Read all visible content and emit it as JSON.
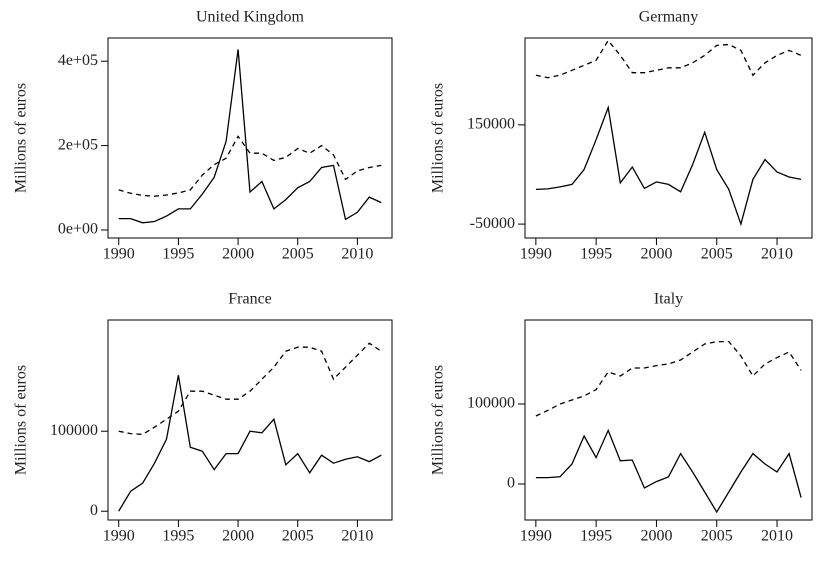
{
  "chart_data": [
    {
      "type": "line",
      "title": "United Kingdom",
      "y_label": "Millions of euros",
      "x": [
        1990,
        1991,
        1992,
        1993,
        1994,
        1995,
        1996,
        1997,
        1998,
        1999,
        2000,
        2001,
        2002,
        2003,
        2004,
        2005,
        2006,
        2007,
        2008,
        2009,
        2010,
        2011,
        2012
      ],
      "series": [
        {
          "color": "#000000",
          "dash": "solid",
          "values": [
            27000,
            27000,
            17000,
            20000,
            33000,
            50000,
            50000,
            85000,
            125000,
            210000,
            428000,
            90000,
            115000,
            50000,
            72000,
            100000,
            115000,
            148000,
            153000,
            25000,
            42000,
            78000,
            65000
          ]
        },
        {
          "color": "#000000",
          "dash": "dashed",
          "values": [
            95000,
            87000,
            82000,
            80000,
            83000,
            88000,
            95000,
            130000,
            155000,
            170000,
            222000,
            182000,
            182000,
            165000,
            172000,
            193000,
            182000,
            200000,
            178000,
            120000,
            140000,
            148000,
            153000
          ]
        }
      ],
      "xlim": [
        1989.1,
        2012.9
      ],
      "xticks": [
        1990,
        1995,
        2000,
        2005,
        2010
      ],
      "ylim": [
        -19000,
        455000
      ],
      "yticks": [
        {
          "value": 0,
          "label": "0e+00"
        },
        {
          "value": 200000,
          "label": "2e+05"
        },
        {
          "value": 400000,
          "label": "4e+05"
        }
      ]
    },
    {
      "type": "line",
      "title": "Germany",
      "y_label": "Millions of euros",
      "x": [
        1990,
        1991,
        1992,
        1993,
        1994,
        1995,
        1996,
        1997,
        1998,
        1999,
        2000,
        2001,
        2002,
        2003,
        2004,
        2005,
        2006,
        2007,
        2008,
        2009,
        2010,
        2011,
        2012
      ],
      "series": [
        {
          "color": "#000000",
          "dash": "solid",
          "values": [
            20000,
            21000,
            25000,
            30000,
            60000,
            120000,
            185000,
            33000,
            65000,
            22000,
            35000,
            30000,
            15000,
            70000,
            135000,
            60000,
            20000,
            -50000,
            40000,
            80000,
            55000,
            45000,
            40000
          ]
        },
        {
          "color": "#000000",
          "dash": "dashed",
          "values": [
            250000,
            245000,
            250000,
            260000,
            270000,
            280000,
            320000,
            290000,
            255000,
            255000,
            260000,
            265000,
            265000,
            275000,
            290000,
            310000,
            312000,
            300000,
            250000,
            275000,
            290000,
            300000,
            290000
          ]
        }
      ],
      "xlim": [
        1989.1,
        2012.9
      ],
      "xticks": [
        1990,
        1995,
        2000,
        2005,
        2010
      ],
      "ylim": [
        -78000,
        325000
      ],
      "yticks": [
        -50000,
        150000
      ]
    },
    {
      "type": "line",
      "title": "France",
      "y_label": "Millions of euros",
      "x": [
        1990,
        1991,
        1992,
        1993,
        1994,
        1995,
        1996,
        1997,
        1998,
        1999,
        2000,
        2001,
        2002,
        2003,
        2004,
        2005,
        2006,
        2007,
        2008,
        2009,
        2010,
        2011,
        2012
      ],
      "series": [
        {
          "color": "#000000",
          "dash": "solid",
          "values": [
            0,
            25000,
            35000,
            60000,
            90000,
            170000,
            80000,
            75000,
            52000,
            72000,
            72000,
            100000,
            98000,
            115000,
            58000,
            72000,
            48000,
            70000,
            60000,
            65000,
            68000,
            62000,
            70000
          ]
        },
        {
          "color": "#000000",
          "dash": "dashed",
          "values": [
            100000,
            97000,
            96000,
            105000,
            115000,
            125000,
            150000,
            150000,
            145000,
            140000,
            140000,
            150000,
            165000,
            180000,
            200000,
            205000,
            205000,
            200000,
            165000,
            180000,
            195000,
            210000,
            200000
          ]
        }
      ],
      "xlim": [
        1989.1,
        2012.9
      ],
      "xticks": [
        1990,
        1995,
        2000,
        2005,
        2010
      ],
      "ylim": [
        -11000,
        239000
      ],
      "yticks": [
        0,
        100000
      ]
    },
    {
      "type": "line",
      "title": "Italy",
      "y_label": "Millions of euros",
      "x": [
        1990,
        1991,
        1992,
        1993,
        1994,
        1995,
        1996,
        1997,
        1998,
        1999,
        2000,
        2001,
        2002,
        2003,
        2004,
        2005,
        2006,
        2007,
        2008,
        2009,
        2010,
        2011,
        2012
      ],
      "series": [
        {
          "color": "#000000",
          "dash": "solid",
          "values": [
            8000,
            8000,
            9000,
            25000,
            60000,
            33000,
            67000,
            29000,
            30000,
            -5000,
            3000,
            9000,
            38000,
            15000,
            -10000,
            -35000,
            -10000,
            15000,
            38000,
            25000,
            15000,
            38000,
            -17000
          ]
        },
        {
          "color": "#000000",
          "dash": "dashed",
          "values": [
            85000,
            92000,
            100000,
            105000,
            110000,
            118000,
            140000,
            135000,
            145000,
            145000,
            148000,
            150000,
            155000,
            165000,
            175000,
            178000,
            178000,
            160000,
            135000,
            150000,
            158000,
            165000,
            142000
          ]
        }
      ],
      "xlim": [
        1989.1,
        2012.9
      ],
      "xticks": [
        1990,
        1995,
        2000,
        2005,
        2010
      ],
      "ylim": [
        -45000,
        205000
      ],
      "yticks": [
        0,
        100000
      ]
    }
  ]
}
